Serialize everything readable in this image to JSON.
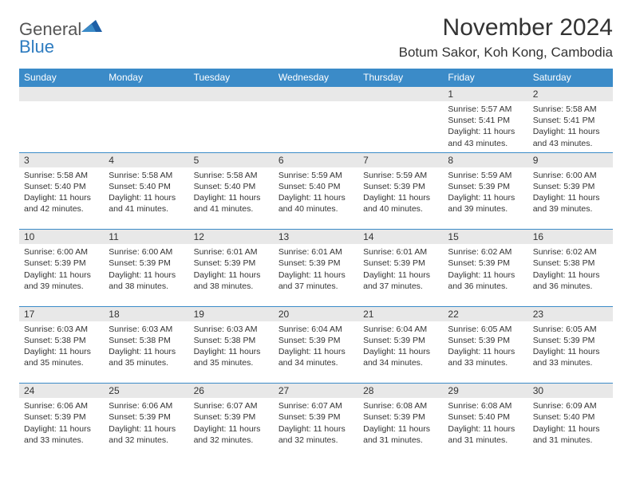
{
  "logo": {
    "text1": "General",
    "text2": "Blue",
    "color1": "#555555",
    "color2": "#2e7cc0"
  },
  "title": "November 2024",
  "location": "Botum Sakor, Koh Kong, Cambodia",
  "header_bg": "#3b8bc8",
  "daynum_bg": "#e8e8e8",
  "divider_color": "#3b8bc8",
  "day_headers": [
    "Sunday",
    "Monday",
    "Tuesday",
    "Wednesday",
    "Thursday",
    "Friday",
    "Saturday"
  ],
  "weeks": [
    [
      {
        "n": "",
        "sr": "",
        "ss": "",
        "dl": ""
      },
      {
        "n": "",
        "sr": "",
        "ss": "",
        "dl": ""
      },
      {
        "n": "",
        "sr": "",
        "ss": "",
        "dl": ""
      },
      {
        "n": "",
        "sr": "",
        "ss": "",
        "dl": ""
      },
      {
        "n": "",
        "sr": "",
        "ss": "",
        "dl": ""
      },
      {
        "n": "1",
        "sr": "Sunrise: 5:57 AM",
        "ss": "Sunset: 5:41 PM",
        "dl": "Daylight: 11 hours and 43 minutes."
      },
      {
        "n": "2",
        "sr": "Sunrise: 5:58 AM",
        "ss": "Sunset: 5:41 PM",
        "dl": "Daylight: 11 hours and 43 minutes."
      }
    ],
    [
      {
        "n": "3",
        "sr": "Sunrise: 5:58 AM",
        "ss": "Sunset: 5:40 PM",
        "dl": "Daylight: 11 hours and 42 minutes."
      },
      {
        "n": "4",
        "sr": "Sunrise: 5:58 AM",
        "ss": "Sunset: 5:40 PM",
        "dl": "Daylight: 11 hours and 41 minutes."
      },
      {
        "n": "5",
        "sr": "Sunrise: 5:58 AM",
        "ss": "Sunset: 5:40 PM",
        "dl": "Daylight: 11 hours and 41 minutes."
      },
      {
        "n": "6",
        "sr": "Sunrise: 5:59 AM",
        "ss": "Sunset: 5:40 PM",
        "dl": "Daylight: 11 hours and 40 minutes."
      },
      {
        "n": "7",
        "sr": "Sunrise: 5:59 AM",
        "ss": "Sunset: 5:39 PM",
        "dl": "Daylight: 11 hours and 40 minutes."
      },
      {
        "n": "8",
        "sr": "Sunrise: 5:59 AM",
        "ss": "Sunset: 5:39 PM",
        "dl": "Daylight: 11 hours and 39 minutes."
      },
      {
        "n": "9",
        "sr": "Sunrise: 6:00 AM",
        "ss": "Sunset: 5:39 PM",
        "dl": "Daylight: 11 hours and 39 minutes."
      }
    ],
    [
      {
        "n": "10",
        "sr": "Sunrise: 6:00 AM",
        "ss": "Sunset: 5:39 PM",
        "dl": "Daylight: 11 hours and 39 minutes."
      },
      {
        "n": "11",
        "sr": "Sunrise: 6:00 AM",
        "ss": "Sunset: 5:39 PM",
        "dl": "Daylight: 11 hours and 38 minutes."
      },
      {
        "n": "12",
        "sr": "Sunrise: 6:01 AM",
        "ss": "Sunset: 5:39 PM",
        "dl": "Daylight: 11 hours and 38 minutes."
      },
      {
        "n": "13",
        "sr": "Sunrise: 6:01 AM",
        "ss": "Sunset: 5:39 PM",
        "dl": "Daylight: 11 hours and 37 minutes."
      },
      {
        "n": "14",
        "sr": "Sunrise: 6:01 AM",
        "ss": "Sunset: 5:39 PM",
        "dl": "Daylight: 11 hours and 37 minutes."
      },
      {
        "n": "15",
        "sr": "Sunrise: 6:02 AM",
        "ss": "Sunset: 5:39 PM",
        "dl": "Daylight: 11 hours and 36 minutes."
      },
      {
        "n": "16",
        "sr": "Sunrise: 6:02 AM",
        "ss": "Sunset: 5:38 PM",
        "dl": "Daylight: 11 hours and 36 minutes."
      }
    ],
    [
      {
        "n": "17",
        "sr": "Sunrise: 6:03 AM",
        "ss": "Sunset: 5:38 PM",
        "dl": "Daylight: 11 hours and 35 minutes."
      },
      {
        "n": "18",
        "sr": "Sunrise: 6:03 AM",
        "ss": "Sunset: 5:38 PM",
        "dl": "Daylight: 11 hours and 35 minutes."
      },
      {
        "n": "19",
        "sr": "Sunrise: 6:03 AM",
        "ss": "Sunset: 5:38 PM",
        "dl": "Daylight: 11 hours and 35 minutes."
      },
      {
        "n": "20",
        "sr": "Sunrise: 6:04 AM",
        "ss": "Sunset: 5:39 PM",
        "dl": "Daylight: 11 hours and 34 minutes."
      },
      {
        "n": "21",
        "sr": "Sunrise: 6:04 AM",
        "ss": "Sunset: 5:39 PM",
        "dl": "Daylight: 11 hours and 34 minutes."
      },
      {
        "n": "22",
        "sr": "Sunrise: 6:05 AM",
        "ss": "Sunset: 5:39 PM",
        "dl": "Daylight: 11 hours and 33 minutes."
      },
      {
        "n": "23",
        "sr": "Sunrise: 6:05 AM",
        "ss": "Sunset: 5:39 PM",
        "dl": "Daylight: 11 hours and 33 minutes."
      }
    ],
    [
      {
        "n": "24",
        "sr": "Sunrise: 6:06 AM",
        "ss": "Sunset: 5:39 PM",
        "dl": "Daylight: 11 hours and 33 minutes."
      },
      {
        "n": "25",
        "sr": "Sunrise: 6:06 AM",
        "ss": "Sunset: 5:39 PM",
        "dl": "Daylight: 11 hours and 32 minutes."
      },
      {
        "n": "26",
        "sr": "Sunrise: 6:07 AM",
        "ss": "Sunset: 5:39 PM",
        "dl": "Daylight: 11 hours and 32 minutes."
      },
      {
        "n": "27",
        "sr": "Sunrise: 6:07 AM",
        "ss": "Sunset: 5:39 PM",
        "dl": "Daylight: 11 hours and 32 minutes."
      },
      {
        "n": "28",
        "sr": "Sunrise: 6:08 AM",
        "ss": "Sunset: 5:39 PM",
        "dl": "Daylight: 11 hours and 31 minutes."
      },
      {
        "n": "29",
        "sr": "Sunrise: 6:08 AM",
        "ss": "Sunset: 5:40 PM",
        "dl": "Daylight: 11 hours and 31 minutes."
      },
      {
        "n": "30",
        "sr": "Sunrise: 6:09 AM",
        "ss": "Sunset: 5:40 PM",
        "dl": "Daylight: 11 hours and 31 minutes."
      }
    ]
  ]
}
